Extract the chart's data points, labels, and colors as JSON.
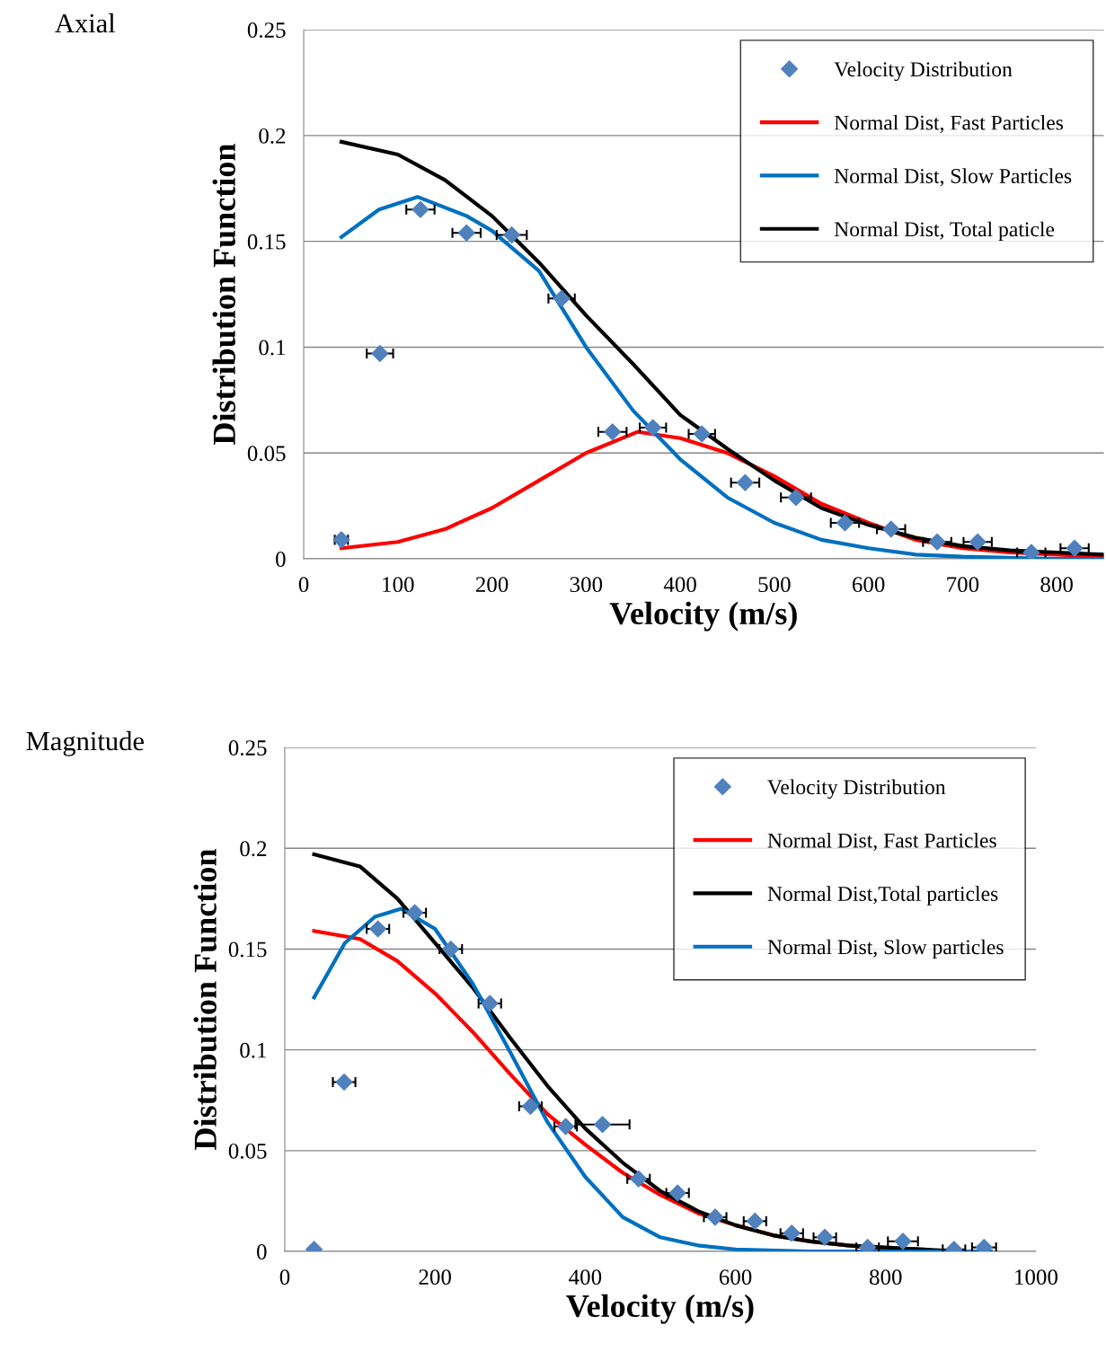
{
  "chart_data": [
    {
      "type": "line",
      "title": "Axial",
      "xlabel": "Velocity (m/s)",
      "ylabel": "Distribution Function",
      "xlim": [
        0,
        850
      ],
      "xticks": [
        0,
        100,
        200,
        300,
        400,
        500,
        600,
        700,
        800
      ],
      "ylim": [
        0,
        0.25
      ],
      "yticks": [
        0,
        0.05,
        0.1,
        0.15,
        0.2,
        0.25
      ],
      "grid": "y",
      "legend": "top right",
      "series": [
        {
          "name": "Velocity Distribution",
          "type": "scatter",
          "marker": "diamond",
          "color": "#4f81bd",
          "x": [
            40,
            81,
            124,
            173,
            221,
            274,
            328,
            371,
            423,
            469,
            523,
            575,
            624,
            673,
            716,
            773,
            819
          ],
          "values": [
            0.009,
            0.097,
            0.165,
            0.154,
            0.153,
            0.123,
            0.06,
            0.062,
            0.059,
            0.036,
            0.029,
            0.017,
            0.014,
            0.008,
            0.008,
            0.003,
            0.005
          ],
          "xerrors": [
            7,
            14,
            15,
            15,
            16,
            14,
            15,
            14,
            14,
            15,
            16,
            15,
            15,
            15,
            15,
            15,
            15
          ]
        },
        {
          "name": "Normal Dist, Fast Particles",
          "color": "#ff0000",
          "x": [
            40,
            100,
            150,
            200,
            250,
            300,
            355,
            400,
            450,
            500,
            550,
            600,
            650,
            700,
            750,
            800,
            850
          ],
          "values": [
            0.005,
            0.008,
            0.014,
            0.024,
            0.037,
            0.05,
            0.06,
            0.057,
            0.05,
            0.039,
            0.026,
            0.017,
            0.009,
            0.005,
            0.003,
            0.002,
            0.001
          ]
        },
        {
          "name": "Normal Dist, Slow Particles",
          "color": "#0070c0",
          "x": [
            40,
            80,
            121,
            173,
            200,
            250,
            300,
            350,
            400,
            450,
            500,
            550,
            600,
            650,
            700,
            800,
            850
          ],
          "values": [
            0.152,
            0.165,
            0.171,
            0.162,
            0.155,
            0.136,
            0.1,
            0.07,
            0.047,
            0.029,
            0.017,
            0.009,
            0.005,
            0.002,
            0.001,
            0.0,
            0.0
          ]
        },
        {
          "name": "Normal Dist, Total paticle",
          "color": "#000000",
          "x": [
            40,
            100,
            150,
            200,
            250,
            300,
            350,
            400,
            450,
            500,
            550,
            600,
            650,
            700,
            750,
            800,
            850
          ],
          "values": [
            0.197,
            0.191,
            0.179,
            0.162,
            0.14,
            0.115,
            0.092,
            0.068,
            0.052,
            0.037,
            0.024,
            0.016,
            0.01,
            0.006,
            0.004,
            0.003,
            0.002
          ]
        }
      ]
    },
    {
      "type": "line",
      "title": "Magnitude",
      "xlabel": "Velocity (m/s)",
      "ylabel": "Distribution Function",
      "xlim": [
        0,
        1000
      ],
      "xticks": [
        0,
        200,
        400,
        600,
        800,
        1000
      ],
      "ylim": [
        0,
        0.25
      ],
      "yticks": [
        0,
        0.05,
        0.1,
        0.15,
        0.2,
        0.25
      ],
      "grid": "y",
      "legend": "top right",
      "series": [
        {
          "name": "Velocity Distribution",
          "type": "scatter",
          "marker": "diamond",
          "color": "#4f81bd",
          "x": [
            39,
            79,
            124,
            173,
            221,
            273,
            327,
            374,
            423,
            471,
            523,
            573,
            626,
            675,
            719,
            776,
            823,
            891,
            931
          ],
          "values": [
            0.001,
            0.084,
            0.16,
            0.168,
            0.15,
            0.123,
            0.072,
            0.062,
            0.063,
            0.036,
            0.029,
            0.017,
            0.015,
            0.009,
            0.007,
            0.002,
            0.005,
            0.001,
            0.002
          ],
          "xerrors": [
            null,
            15,
            15,
            15,
            15,
            15,
            15,
            15,
            36,
            15,
            15,
            15,
            15,
            15,
            15,
            15,
            20,
            15,
            16
          ]
        },
        {
          "name": "Normal Dist, Fast Particles",
          "color": "#ff0000",
          "x": [
            39,
            100,
            150,
            200,
            250,
            300,
            350,
            400,
            450,
            500,
            550,
            600,
            650,
            700,
            750,
            800,
            850
          ],
          "values": [
            0.159,
            0.155,
            0.144,
            0.128,
            0.109,
            0.088,
            0.068,
            0.053,
            0.039,
            0.028,
            0.019,
            0.013,
            0.008,
            0.005,
            0.003,
            0.001,
            0.001
          ]
        },
        {
          "name": "Normal Dist,Total particles",
          "color": "#000000",
          "x": [
            39,
            100,
            150,
            200,
            250,
            300,
            350,
            400,
            450,
            500,
            550,
            600,
            650,
            700,
            750,
            800,
            850,
            900,
            940
          ],
          "values": [
            0.197,
            0.191,
            0.175,
            0.153,
            0.131,
            0.106,
            0.082,
            0.061,
            0.044,
            0.03,
            0.02,
            0.013,
            0.008,
            0.005,
            0.003,
            0.002,
            0.001,
            0.0,
            0.0
          ]
        },
        {
          "name": "Normal Dist, Slow particles",
          "color": "#0070c0",
          "x": [
            39,
            80,
            120,
            155,
            200,
            250,
            300,
            350,
            400,
            450,
            500,
            550,
            600,
            700,
            800,
            940
          ],
          "values": [
            0.126,
            0.153,
            0.166,
            0.17,
            0.16,
            0.133,
            0.099,
            0.064,
            0.037,
            0.017,
            0.007,
            0.003,
            0.001,
            0.0,
            0.0,
            0.0
          ]
        }
      ]
    }
  ]
}
